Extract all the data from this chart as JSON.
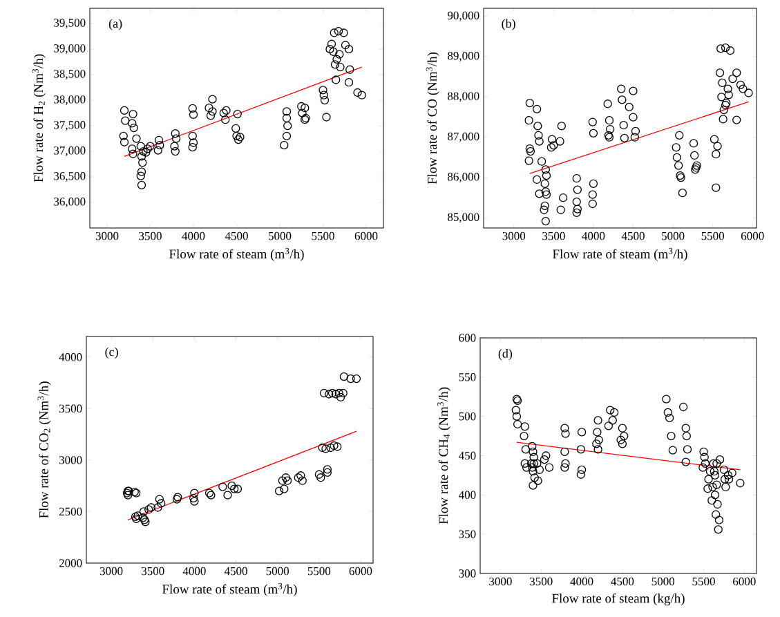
{
  "chart_data": [
    {
      "type": "scatter",
      "xlabel": "Flow rate of steam (m$^{3}$/h)",
      "ylabel": "Flow rate of H$_{2}$ (Nm$^{3}$/h)",
      "annotations": [
        "(a)"
      ],
      "marker": "circle",
      "grid": false,
      "xlim": [
        2800,
        6200
      ],
      "ylim": [
        35500,
        39800
      ],
      "xticks": [
        3000,
        3500,
        4000,
        4500,
        5000,
        5500,
        6000
      ],
      "yticks": [
        {
          "value": 36000,
          "label": "36,000"
        },
        {
          "value": 36500,
          "label": "36,500"
        },
        {
          "value": 37000,
          "label": "37,000"
        },
        {
          "value": 37500,
          "label": "37,500"
        },
        {
          "value": 38000,
          "label": "38,000"
        },
        {
          "value": 38500,
          "label": "38,500"
        },
        {
          "value": 39000,
          "label": "39,000"
        },
        {
          "value": 39500,
          "label": "39,500"
        }
      ],
      "series": [
        {
          "color": "#000000",
          "x": [
            3200,
            3210,
            3190,
            3200,
            3300,
            3290,
            3310,
            3290,
            3300,
            3340,
            3390,
            3400,
            3410,
            3400,
            3390,
            3400,
            3420,
            3470,
            3450,
            3500,
            3600,
            3610,
            3590,
            3790,
            3800,
            3780,
            3790,
            3990,
            4000,
            3990,
            4000,
            3990,
            4180,
            4200,
            4220,
            4220,
            4350,
            4370,
            4380,
            4510,
            4490,
            4500,
            4520,
            4540,
            5050,
            5080,
            5080,
            5090,
            5080,
            5250,
            5260,
            5290,
            5290,
            5300,
            5500,
            5510,
            5520,
            5540,
            5600,
            5630,
            5620,
            5640,
            5650,
            5580,
            5680,
            5660,
            5690,
            5700,
            5740,
            5760,
            5800,
            5800,
            5810,
            5900,
            5950
          ],
          "values": [
            37800,
            37600,
            37300,
            37180,
            37730,
            37550,
            37460,
            37050,
            36950,
            37250,
            37100,
            36900,
            36780,
            36600,
            36520,
            36340,
            37000,
            37050,
            36980,
            37100,
            37220,
            37120,
            37020,
            37350,
            37250,
            37100,
            37000,
            37840,
            37720,
            37300,
            37170,
            37080,
            37850,
            37700,
            38020,
            37780,
            37750,
            37620,
            37800,
            37730,
            37450,
            37300,
            37230,
            37280,
            37120,
            37780,
            37650,
            37500,
            37300,
            37880,
            37750,
            37620,
            37850,
            37650,
            38200,
            38100,
            38000,
            37670,
            39100,
            39320,
            38950,
            38700,
            38400,
            39000,
            39350,
            38800,
            38900,
            38650,
            39320,
            39080,
            39000,
            38350,
            38600,
            38150,
            38100
          ]
        },
        {
          "type": "line",
          "color": "#ff0000",
          "marker": "none",
          "x": [
            3200,
            5950
          ],
          "values": [
            36900,
            38650
          ]
        }
      ]
    },
    {
      "type": "scatter",
      "xlabel": "Flow rate of steam (m$^{3}$/h)",
      "ylabel": "Flow rate of CO (Nm$^{3}$/h)",
      "annotations": [
        "(b)"
      ],
      "marker": "circle",
      "grid": false,
      "xlim": [
        2620,
        6050
      ],
      "ylim": [
        84750,
        90200
      ],
      "xticks": [
        3000,
        3500,
        4000,
        4500,
        5000,
        5500,
        6000
      ],
      "yticks": [
        {
          "value": 85000,
          "label": "85,000"
        },
        {
          "value": 86000,
          "label": "86,000"
        },
        {
          "value": 87000,
          "label": "87,000"
        },
        {
          "value": 88000,
          "label": "88,000"
        },
        {
          "value": 89000,
          "label": "89,000"
        },
        {
          "value": 90000,
          "label": "90,000"
        }
      ],
      "series": [
        {
          "color": "#000000",
          "x": [
            3200,
            3190,
            3200,
            3210,
            3190,
            3290,
            3300,
            3310,
            3320,
            3290,
            3320,
            3350,
            3380,
            3400,
            3410,
            3390,
            3400,
            3410,
            3390,
            3400,
            3480,
            3500,
            3470,
            3600,
            3580,
            3620,
            3590,
            3790,
            3800,
            3790,
            3800,
            3790,
            3990,
            4000,
            4000,
            3990,
            3990,
            4180,
            4200,
            4210,
            4190,
            4200,
            4350,
            4360,
            4380,
            4390,
            4500,
            4450,
            4500,
            4530,
            4520,
            5040,
            5050,
            5080,
            5070,
            5100,
            5120,
            5090,
            5260,
            5270,
            5290,
            5280,
            5300,
            5520,
            5560,
            5540,
            5540,
            5600,
            5590,
            5620,
            5610,
            5640,
            5630,
            5660,
            5690,
            5670,
            5660,
            5720,
            5700,
            5800,
            5750,
            5800,
            5850,
            5880,
            5950
          ],
          "values": [
            87850,
            87420,
            86720,
            86650,
            86420,
            87700,
            87280,
            87050,
            86900,
            85950,
            85600,
            86400,
            85200,
            86200,
            86050,
            85850,
            85650,
            85580,
            85300,
            84920,
            86950,
            86800,
            86750,
            87280,
            86900,
            85500,
            85200,
            85980,
            85700,
            85400,
            85220,
            85130,
            87380,
            87100,
            85850,
            85580,
            85350,
            87830,
            87420,
            87200,
            87050,
            87000,
            88200,
            87930,
            87300,
            86980,
            88150,
            87750,
            87500,
            87150,
            87000,
            86750,
            86500,
            87050,
            86300,
            86000,
            85620,
            86050,
            86850,
            86550,
            86250,
            86200,
            86300,
            86950,
            86780,
            86580,
            85750,
            89200,
            88600,
            88350,
            88000,
            87680,
            87450,
            89220,
            88200,
            87850,
            87800,
            89150,
            88050,
            88600,
            88450,
            87430,
            88300,
            88200,
            88100
          ]
        },
        {
          "type": "line",
          "color": "#ff0000",
          "marker": "none",
          "x": [
            3200,
            5950
          ],
          "values": [
            86100,
            87880
          ]
        }
      ]
    },
    {
      "type": "scatter",
      "xlabel": "Flow rate of steam (m$^{3}$/h)",
      "ylabel": "Flow rate of CO$_{2}$ (Nm$^{3}$/h)",
      "annotations": [
        "(c)"
      ],
      "marker": "circle",
      "grid": false,
      "xlim": [
        2700,
        6150
      ],
      "ylim": [
        2000,
        4200
      ],
      "xticks": [
        3000,
        3500,
        4000,
        4500,
        5000,
        5500,
        6000
      ],
      "yticks": [
        2000,
        2500,
        3000,
        3500,
        4000
      ],
      "series": [
        {
          "color": "#000000",
          "x": [
            3200,
            3190,
            3200,
            3210,
            3280,
            3300,
            3290,
            3300,
            3320,
            3390,
            3400,
            3410,
            3380,
            3450,
            3480,
            3600,
            3580,
            3560,
            3790,
            3800,
            4000,
            3990,
            4000,
            4180,
            4200,
            4340,
            4400,
            4450,
            4480,
            4520,
            5020,
            5080,
            5060,
            5100,
            5120,
            5250,
            5280,
            5300,
            5500,
            5520,
            5540,
            5560,
            5580,
            5600,
            5620,
            5640,
            5600,
            5660,
            5680,
            5700,
            5720,
            5740,
            5760,
            5800,
            5790,
            5880,
            5950
          ],
          "values": [
            2700,
            2680,
            2660,
            2700,
            2690,
            2680,
            2450,
            2430,
            2460,
            2500,
            2420,
            2400,
            2440,
            2520,
            2540,
            2580,
            2620,
            2540,
            2620,
            2640,
            2680,
            2630,
            2600,
            2680,
            2660,
            2740,
            2660,
            2750,
            2720,
            2720,
            2700,
            2720,
            2800,
            2830,
            2800,
            2830,
            2850,
            2800,
            2860,
            2830,
            3120,
            3650,
            3110,
            2880,
            3640,
            3120,
            2910,
            3650,
            3140,
            3640,
            3130,
            3650,
            3610,
            3810,
            3650,
            3790,
            3790
          ]
        },
        {
          "type": "line",
          "color": "#ff0000",
          "marker": "none",
          "x": [
            3200,
            5950
          ],
          "values": [
            2420,
            3280
          ]
        }
      ]
    },
    {
      "type": "scatter",
      "xlabel": "Flow rate of steam (kg/h)",
      "ylabel": "Flow rate of CH$_{4}$ (Nm$^{3}$/h)",
      "annotations": [
        "(d)"
      ],
      "marker": "circle",
      "grid": false,
      "xlim": [
        2750,
        6150
      ],
      "ylim": [
        300,
        600
      ],
      "xticks": [
        3000,
        3500,
        4000,
        4500,
        5000,
        5500,
        6000
      ],
      "yticks": [
        300,
        350,
        400,
        450,
        500,
        550,
        600
      ],
      "series": [
        {
          "color": "#000000",
          "x": [
            3200,
            3210,
            3190,
            3200,
            3210,
            3300,
            3290,
            3310,
            3300,
            3320,
            3390,
            3400,
            3410,
            3390,
            3400,
            3420,
            3400,
            3380,
            3410,
            3450,
            3480,
            3460,
            3560,
            3540,
            3600,
            3790,
            3800,
            3790,
            3800,
            3790,
            4000,
            3990,
            4000,
            3990,
            4200,
            4190,
            4210,
            4180,
            4200,
            4350,
            4400,
            4380,
            4330,
            4500,
            4520,
            4480,
            4500,
            5040,
            5060,
            5080,
            5100,
            5120,
            5250,
            5280,
            5290,
            5300,
            5280,
            5500,
            5510,
            5520,
            5490,
            5550,
            5560,
            5580,
            5600,
            5610,
            5620,
            5630,
            5650,
            5640,
            5660,
            5660,
            5640,
            5680,
            5690,
            5670,
            5700,
            5750,
            5760,
            5770,
            5800,
            5810,
            5850,
            5950
          ],
          "values": [
            522,
            520,
            508,
            500,
            490,
            487,
            475,
            458,
            440,
            435,
            462,
            455,
            440,
            435,
            430,
            422,
            412,
            440,
            448,
            440,
            432,
            418,
            450,
            445,
            435,
            485,
            478,
            455,
            440,
            435,
            480,
            458,
            432,
            426,
            495,
            480,
            470,
            465,
            458,
            508,
            505,
            495,
            488,
            485,
            475,
            470,
            465,
            522,
            505,
            498,
            475,
            457,
            512,
            485,
            475,
            458,
            442,
            455,
            448,
            440,
            435,
            408,
            420,
            430,
            393,
            410,
            440,
            430,
            375,
            400,
            413,
            440,
            425,
            356,
            368,
            388,
            445,
            432,
            420,
            410,
            425,
            420,
            428,
            415
          ]
        },
        {
          "type": "line",
          "color": "#ff0000",
          "marker": "none",
          "x": [
            3200,
            5950
          ],
          "values": [
            467,
            432
          ]
        }
      ]
    }
  ]
}
